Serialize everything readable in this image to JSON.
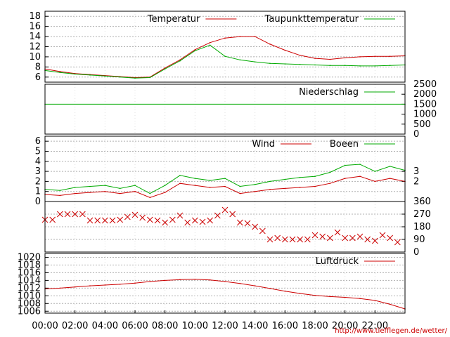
{
  "chart_data": [
    {
      "type": "line",
      "panel": "temperature",
      "x_unit": "hour",
      "ylim": [
        5,
        19
      ],
      "y_ticks": [
        6,
        8,
        10,
        12,
        14,
        16,
        18
      ],
      "grid": true,
      "legend_position": "top-right",
      "x": [
        0,
        1,
        2,
        3,
        4,
        5,
        6,
        7,
        8,
        9,
        10,
        11,
        12,
        13,
        14,
        15,
        16,
        17,
        18,
        19,
        20,
        21,
        22,
        23,
        24
      ],
      "series": [
        {
          "name": "Temperatur",
          "color": "#cc0000",
          "values": [
            7.6,
            7.1,
            6.7,
            6.5,
            6.3,
            6.1,
            5.9,
            6.0,
            7.8,
            9.4,
            11.4,
            12.8,
            13.7,
            14.0,
            14.0,
            12.5,
            11.3,
            10.3,
            9.7,
            9.5,
            9.8,
            10.0,
            10.1,
            10.1,
            10.2
          ]
        },
        {
          "name": "Taupunkttemperatur",
          "color": "#00aa00",
          "values": [
            7.3,
            6.9,
            6.6,
            6.4,
            6.2,
            6.0,
            5.8,
            5.9,
            7.6,
            9.2,
            11.2,
            12.3,
            10.1,
            9.4,
            9.0,
            8.7,
            8.6,
            8.5,
            8.4,
            8.3,
            8.3,
            8.2,
            8.2,
            8.3,
            8.4
          ]
        }
      ]
    },
    {
      "type": "line",
      "panel": "precipitation",
      "ylim": [
        0,
        2500
      ],
      "y_ticks": [
        0,
        500,
        1000,
        1500,
        2000,
        2500
      ],
      "legend_position": "top-right",
      "x": [
        0,
        24
      ],
      "series": [
        {
          "name": "Niederschlag",
          "color": "#00aa00",
          "values": [
            1500,
            1500
          ]
        }
      ]
    },
    {
      "type": "line",
      "panel": "wind",
      "ylim": [
        0,
        6.5
      ],
      "y_ticks": [
        0,
        1,
        2,
        3,
        4,
        5,
        6
      ],
      "right_ticks": [
        2,
        3
      ],
      "grid": true,
      "legend_position": "top-right",
      "x": [
        0,
        1,
        2,
        3,
        4,
        5,
        6,
        7,
        8,
        9,
        10,
        11,
        12,
        13,
        14,
        15,
        16,
        17,
        18,
        19,
        20,
        21,
        22,
        23,
        24
      ],
      "series": [
        {
          "name": "Wind",
          "color": "#cc0000",
          "values": [
            0.7,
            0.6,
            0.8,
            0.9,
            1.0,
            0.8,
            1.0,
            0.4,
            0.9,
            1.8,
            1.6,
            1.4,
            1.5,
            0.8,
            1.0,
            1.2,
            1.3,
            1.4,
            1.5,
            1.8,
            2.3,
            2.5,
            2.0,
            2.3,
            2.0
          ]
        },
        {
          "name": "Boeen",
          "color": "#00aa00",
          "values": [
            1.2,
            1.1,
            1.4,
            1.5,
            1.6,
            1.3,
            1.6,
            0.8,
            1.6,
            2.6,
            2.3,
            2.1,
            2.3,
            1.5,
            1.7,
            2.0,
            2.2,
            2.4,
            2.5,
            2.9,
            3.6,
            3.7,
            3.0,
            3.5,
            3.1
          ]
        }
      ]
    },
    {
      "type": "scatter",
      "panel": "wind_direction",
      "ylim": [
        0,
        360
      ],
      "right_ticks": [
        0,
        90,
        180,
        270,
        360
      ],
      "grid": true,
      "marker": "x",
      "x": [
        0,
        0.5,
        1,
        1.5,
        2,
        2.5,
        3,
        3.5,
        4,
        4.5,
        5,
        5.5,
        6,
        6.5,
        7,
        7.5,
        8,
        8.5,
        9,
        9.5,
        10,
        10.5,
        11,
        11.5,
        12,
        12.5,
        13,
        13.5,
        14,
        14.5,
        15,
        15.5,
        16,
        16.5,
        17,
        17.5,
        18,
        18.5,
        19,
        19.5,
        20,
        20.5,
        21,
        21.5,
        22,
        22.5,
        23,
        23.5
      ],
      "series": [
        {
          "name": "",
          "color": "#cc0000",
          "values": [
            230,
            230,
            270,
            270,
            270,
            270,
            225,
            225,
            225,
            225,
            230,
            250,
            265,
            245,
            230,
            225,
            210,
            230,
            260,
            210,
            225,
            215,
            225,
            260,
            300,
            270,
            210,
            205,
            180,
            150,
            90,
            100,
            90,
            90,
            90,
            90,
            120,
            110,
            100,
            140,
            100,
            100,
            110,
            90,
            80,
            120,
            100,
            70
          ]
        }
      ]
    },
    {
      "type": "line",
      "panel": "pressure",
      "ylim": [
        1005.5,
        1021
      ],
      "y_ticks": [
        1006,
        1008,
        1010,
        1012,
        1014,
        1016,
        1018,
        1020
      ],
      "grid": true,
      "legend_position": "top-right",
      "x_tick_labels": [
        "00:00",
        "02:00",
        "04:00",
        "06:00",
        "08:00",
        "10:00",
        "12:00",
        "14:00",
        "16:00",
        "18:00",
        "20:00",
        "22:00"
      ],
      "x": [
        0,
        1,
        2,
        3,
        4,
        5,
        6,
        7,
        8,
        9,
        10,
        11,
        12,
        13,
        14,
        15,
        16,
        17,
        18,
        19,
        20,
        21,
        22,
        23,
        24
      ],
      "series": [
        {
          "name": "Luftdruck",
          "color": "#cc0000",
          "values": [
            1011.8,
            1012.0,
            1012.3,
            1012.6,
            1012.8,
            1013.0,
            1013.3,
            1013.7,
            1014.0,
            1014.2,
            1014.3,
            1014.1,
            1013.7,
            1013.2,
            1012.6,
            1011.9,
            1011.2,
            1010.6,
            1010.1,
            1009.8,
            1009.6,
            1009.3,
            1008.8,
            1007.8,
            1006.6
          ]
        }
      ]
    }
  ],
  "credit": "http://www.tiefflegen.de/wetter/",
  "colors": {
    "red": "#cc0000",
    "green": "#00aa00",
    "grid": "#b0b0b0"
  }
}
